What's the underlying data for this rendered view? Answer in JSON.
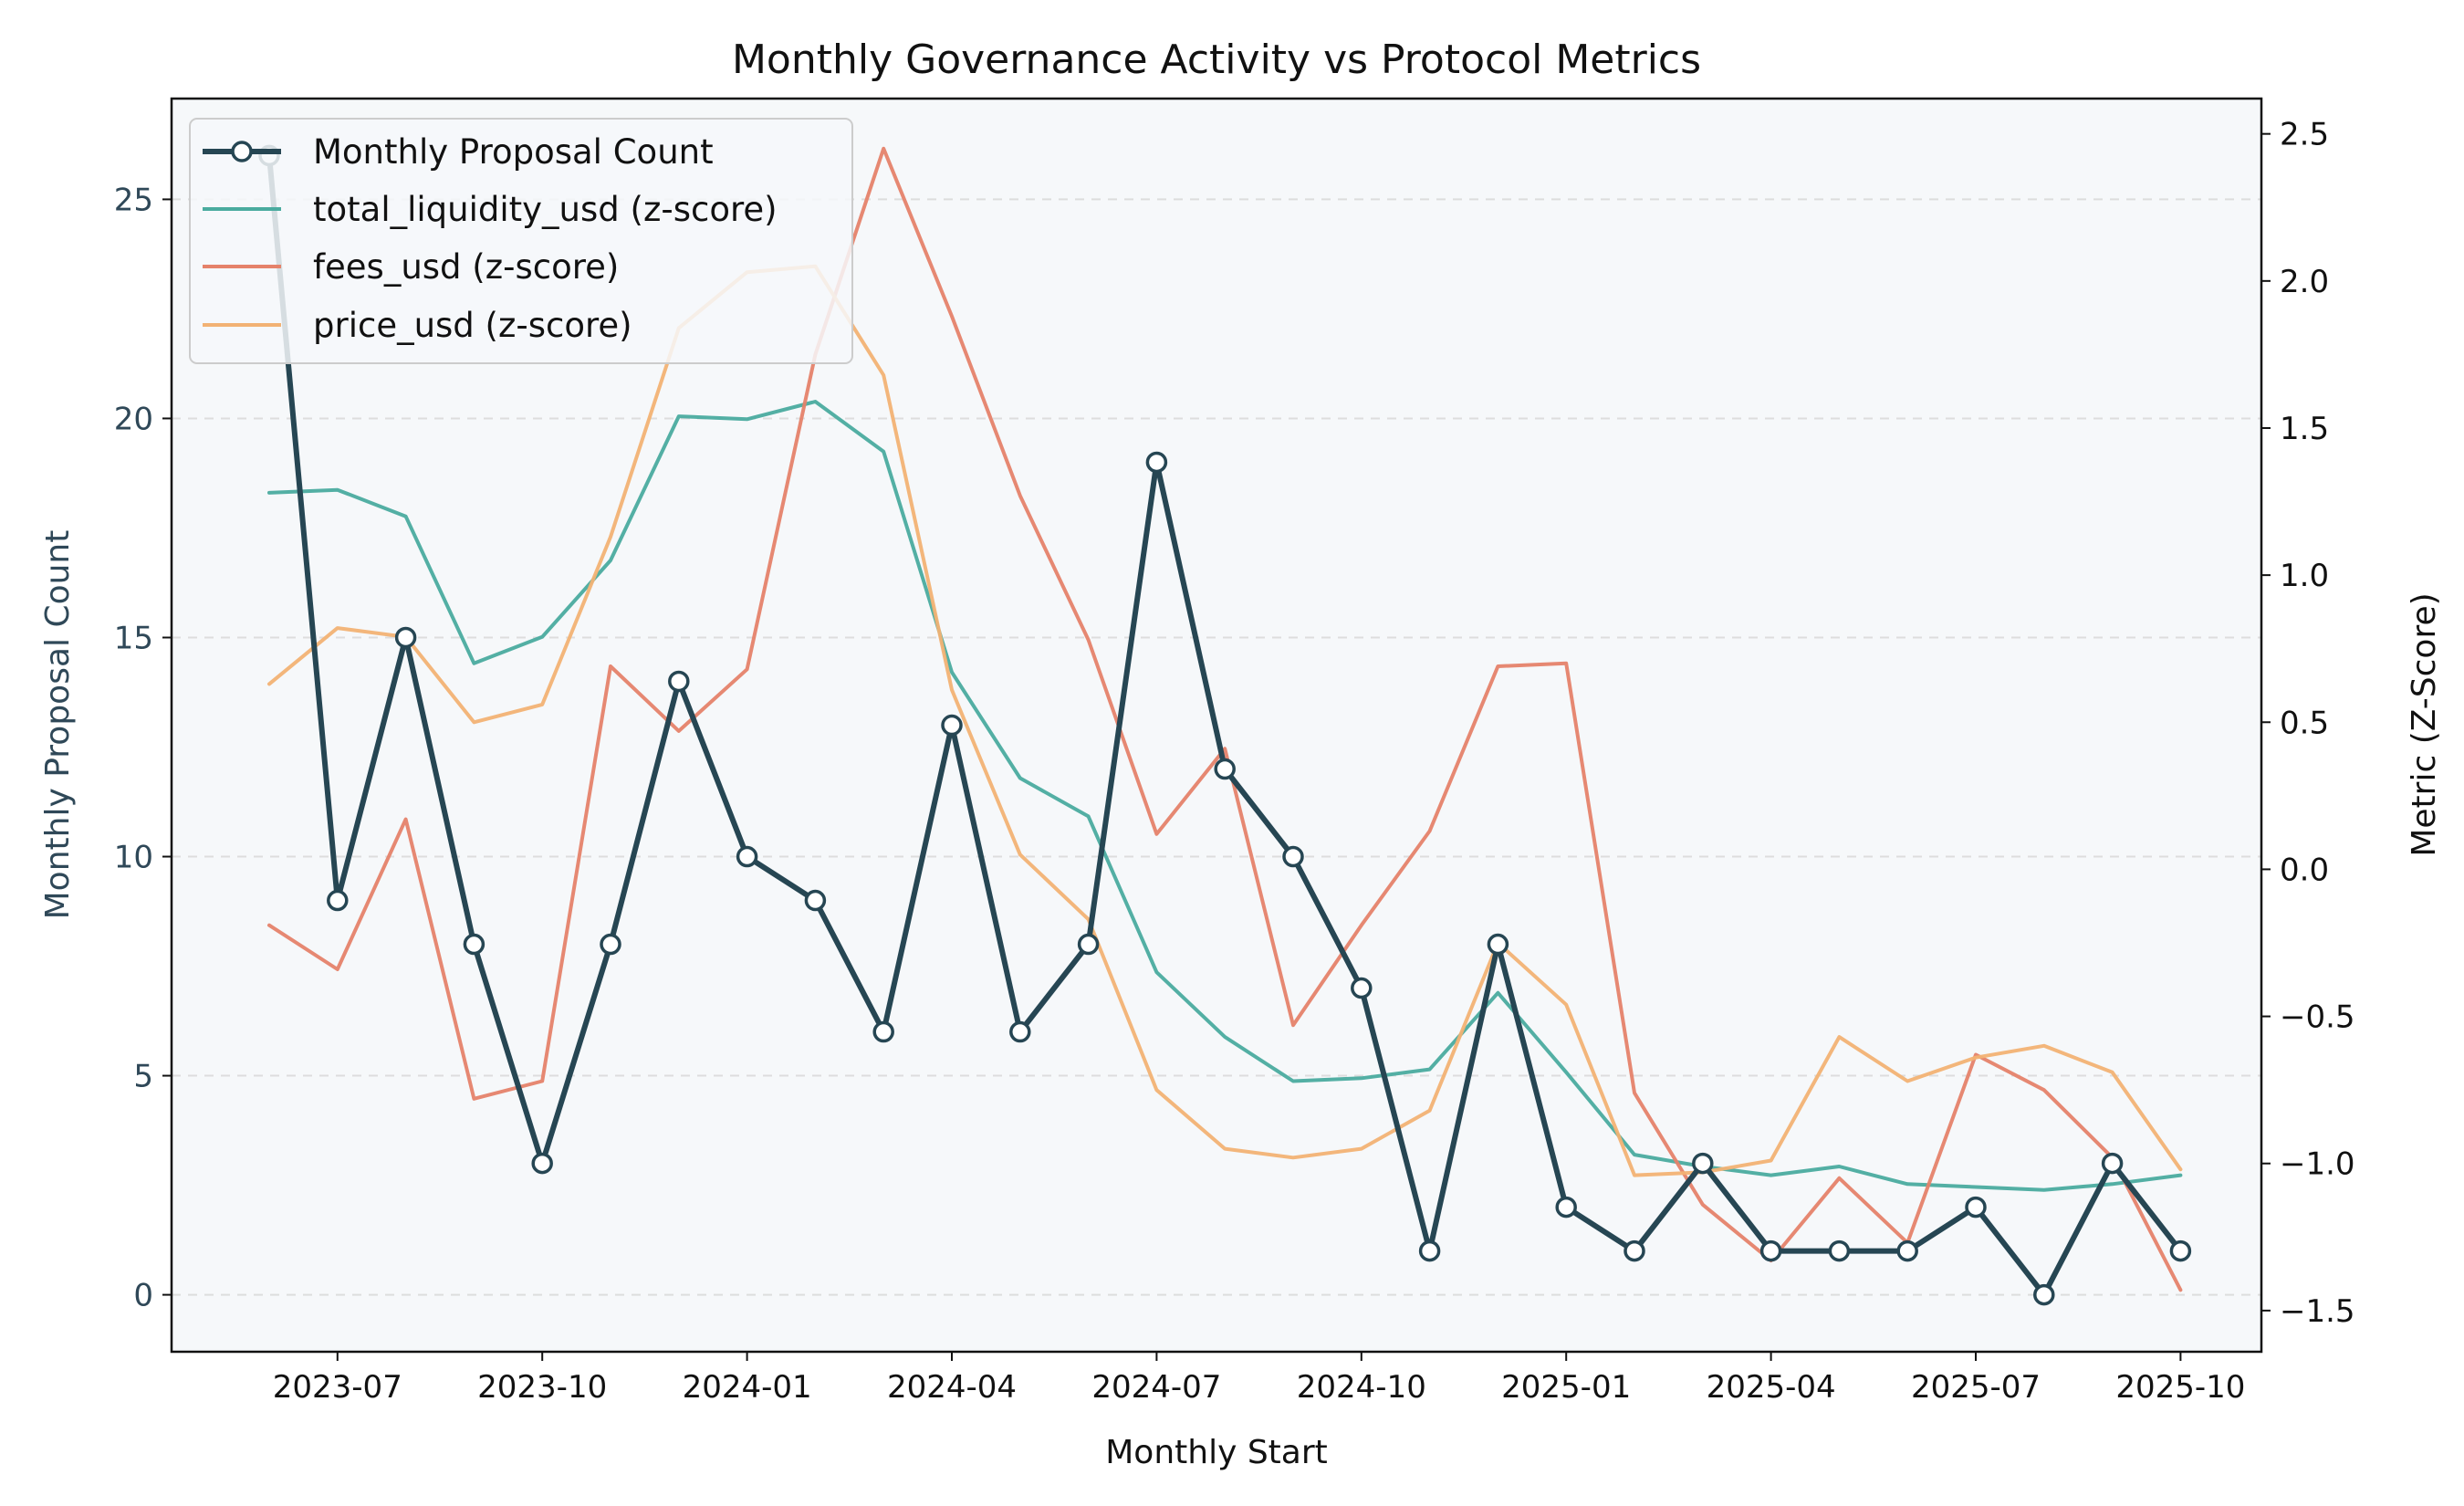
{
  "chart_data": {
    "type": "line",
    "title": "Monthly Governance Activity vs Protocol Metrics",
    "xlabel": "Monthly Start",
    "ylabel_left": "Monthly Proposal Count",
    "ylabel_right": "Metric (Z-Score)",
    "x": [
      "2023-06",
      "2023-07",
      "2023-08",
      "2023-09",
      "2023-10",
      "2023-11",
      "2023-12",
      "2024-01",
      "2024-02",
      "2024-03",
      "2024-04",
      "2024-05",
      "2024-06",
      "2024-07",
      "2024-08",
      "2024-09",
      "2024-10",
      "2024-11",
      "2024-12",
      "2025-01",
      "2025-02",
      "2025-03",
      "2025-04",
      "2025-05",
      "2025-06",
      "2025-07",
      "2025-08",
      "2025-09",
      "2025-10"
    ],
    "x_ticks": [
      "2023-07",
      "2023-10",
      "2024-01",
      "2024-04",
      "2024-07",
      "2024-10",
      "2025-01",
      "2025-04",
      "2025-07",
      "2025-10"
    ],
    "ylim_left": [
      -1.3,
      27.3
    ],
    "ylim_right": [
      -1.64,
      2.62
    ],
    "yticks_left": [
      0,
      5,
      10,
      15,
      20,
      25
    ],
    "yticks_right": [
      -1.5,
      -1.0,
      -0.5,
      0.0,
      0.5,
      1.0,
      1.5,
      2.0,
      2.5
    ],
    "yticks_right_labels": [
      "−1.5",
      "−1.0",
      "−0.5",
      "0.0",
      "0.5",
      "1.0",
      "1.5",
      "2.0",
      "2.5"
    ],
    "grid": "horizontal dashed (left axis)",
    "legend_position": "top-left",
    "colors": {
      "proposals": "#264653",
      "liquidity": "#4aab9f",
      "fees": "#e5826a",
      "price": "#f2b274",
      "plot_bg": "#f6f8fa",
      "grid": "#dddddd",
      "left_axis_text": "#2f4858"
    },
    "series": [
      {
        "name": "Monthly Proposal Count",
        "axis": "left",
        "values": [
          26,
          9,
          15,
          8,
          3,
          8,
          14,
          10,
          9,
          6,
          13,
          6,
          8,
          19,
          12,
          10,
          7,
          1,
          8,
          2,
          1,
          3,
          1,
          1,
          1,
          2,
          0,
          3,
          1
        ]
      },
      {
        "name": "total_liquidity_usd (z-score)",
        "axis": "right",
        "values": [
          1.28,
          1.29,
          1.2,
          0.7,
          0.79,
          1.05,
          1.54,
          1.53,
          1.59,
          1.42,
          0.67,
          0.31,
          0.18,
          -0.35,
          -0.57,
          -0.72,
          -0.71,
          -0.68,
          -0.42,
          -0.69,
          -0.97,
          -1.01,
          -1.04,
          -1.01,
          -1.07,
          -1.08,
          -1.09,
          -1.07,
          -1.04
        ]
      },
      {
        "name": "fees_usd (z-score)",
        "axis": "right",
        "values": [
          -0.19,
          -0.34,
          0.17,
          -0.78,
          -0.72,
          0.69,
          0.47,
          0.68,
          1.75,
          2.45,
          1.88,
          1.27,
          0.78,
          0.12,
          0.41,
          -0.53,
          -0.19,
          0.13,
          0.69,
          0.7,
          -0.76,
          -1.14,
          -1.33,
          -1.05,
          -1.27,
          -0.63,
          -0.75,
          -0.98,
          -1.43
        ]
      },
      {
        "name": "price_usd (z-score)",
        "axis": "right",
        "values": [
          0.63,
          0.82,
          0.79,
          0.5,
          0.56,
          1.13,
          1.84,
          2.03,
          2.05,
          1.68,
          0.61,
          0.05,
          -0.17,
          -0.75,
          -0.95,
          -0.98,
          -0.95,
          -0.82,
          -0.25,
          -0.46,
          -1.04,
          -1.03,
          -0.99,
          -0.57,
          -0.72,
          -0.64,
          -0.6,
          -0.69,
          -1.02
        ]
      }
    ]
  }
}
